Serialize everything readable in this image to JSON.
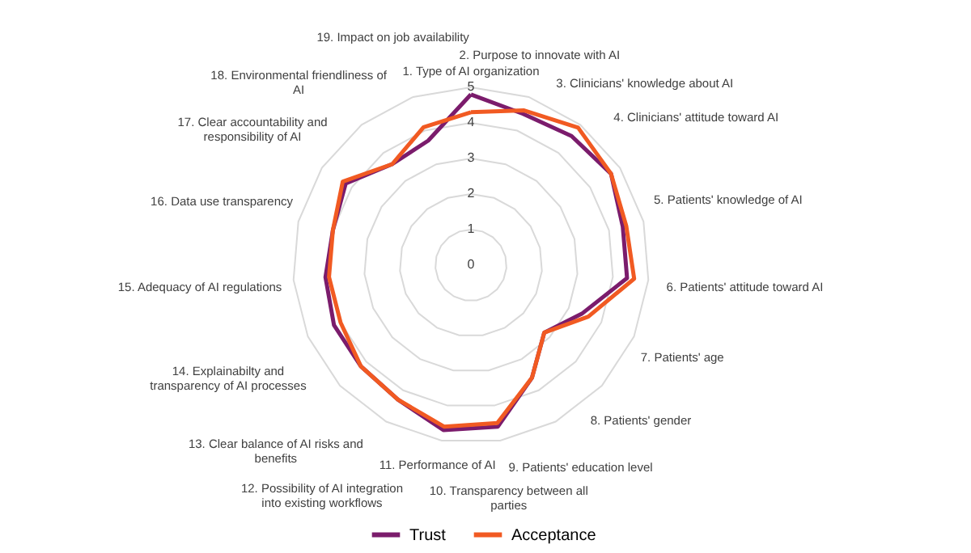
{
  "chart_data": {
    "type": "radar",
    "categories": [
      "1. Type of AI organization",
      "2. Purpose to innovate with AI",
      "3. Clinicians' knowledge about AI",
      "4. Clinicians' attitude toward AI",
      "5. Patients' knowledge of AI",
      "6. Patients' attitude toward AI",
      "7. Patients' age",
      "8. Patients' gender",
      "9. Patients' education level",
      "10. Transparency between all parties",
      "11. Performance of AI",
      "12. Possibility of AI integration into existing workflows",
      "13. Clear balance of AI risks and benefits",
      "14. Explainabilty and transparency of AI processes",
      "15. Adequacy of AI regulations",
      "16. Data use transparency",
      "17. Clear accountability and responsibility of AI",
      "18. Environmental friendliness of AI",
      "19. Impact on job availability"
    ],
    "series": [
      {
        "name": "Trust",
        "color": "#7b1c6c",
        "values": [
          4.8,
          4.5,
          4.6,
          4.7,
          4.4,
          4.4,
          3.4,
          2.8,
          3.6,
          4.6,
          4.7,
          4.3,
          4.2,
          4.2,
          4.1,
          4.0,
          4.2,
          3.6,
          3.7
        ]
      },
      {
        "name": "Acceptance",
        "color": "#f15a22",
        "values": [
          4.3,
          4.6,
          4.9,
          4.7,
          4.5,
          4.6,
          3.6,
          2.8,
          3.6,
          4.5,
          4.6,
          4.3,
          4.2,
          4.0,
          4.0,
          4.0,
          4.3,
          3.6,
          4.1
        ]
      }
    ],
    "ylim": [
      0,
      5
    ],
    "yticks": [
      0,
      1,
      2,
      3,
      4,
      5
    ],
    "grid": true,
    "legend": "bottom"
  }
}
